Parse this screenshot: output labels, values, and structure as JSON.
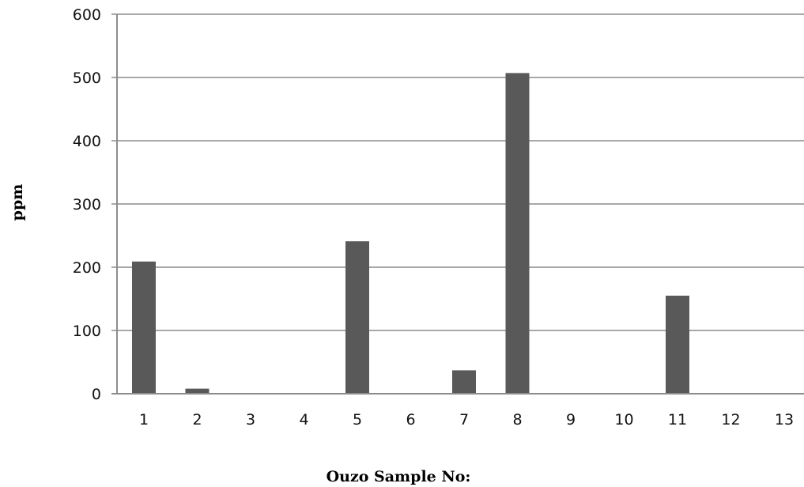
{
  "chart_data": {
    "type": "bar",
    "title": "",
    "xlabel": "Ouzo Sample No:",
    "ylabel": "ppm",
    "categories": [
      "1",
      "2",
      "3",
      "4",
      "5",
      "6",
      "7",
      "8",
      "9",
      "10",
      "11",
      "12",
      "13"
    ],
    "values": [
      209,
      8,
      0,
      0,
      241,
      0,
      37,
      507,
      0,
      0,
      155,
      0,
      0
    ],
    "ylim": [
      0,
      600
    ],
    "yticks": [
      "0",
      "100",
      "200",
      "300",
      "400",
      "500",
      "600"
    ],
    "grid": true,
    "legend": "none",
    "bar_color": "#595959",
    "grid_color": "#8c8c8c"
  }
}
